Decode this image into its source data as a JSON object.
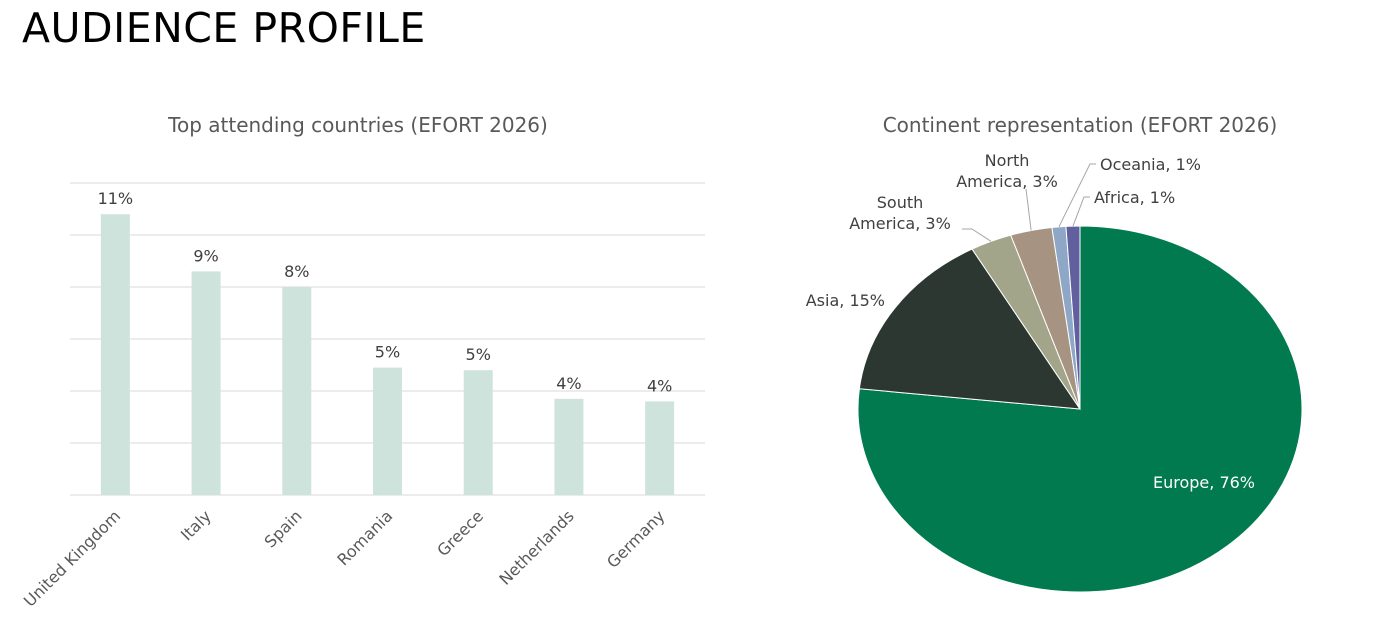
{
  "page": {
    "title": "AUDIENCE PROFILE"
  },
  "colors": {
    "bar": "#cfe3dd",
    "gridline": "#d9d9d9",
    "text": "#404040",
    "pie_label": "#ffffff"
  },
  "chart_data": [
    {
      "type": "bar",
      "title": "Top attending countries (EFORT 2026)",
      "categories": [
        "United Kingdom",
        "Italy",
        "Spain",
        "Romania",
        "Greece",
        "Netherlands",
        "Germany"
      ],
      "values": [
        10.8,
        8.6,
        8.0,
        4.9,
        4.8,
        3.7,
        3.6
      ],
      "data_labels": [
        "11%",
        "9%",
        "8%",
        "5%",
        "5%",
        "4%",
        "4%"
      ],
      "ylim": [
        0,
        12
      ],
      "grid": true,
      "xlabel": "",
      "ylabel": ""
    },
    {
      "type": "pie",
      "title": "Continent representation (EFORT 2026)",
      "slices": [
        {
          "label": "Europe",
          "value": 76,
          "display": "76%",
          "color": "#017a4f"
        },
        {
          "label": "Asia",
          "value": 15,
          "display": "15%",
          "color": "#2d3731"
        },
        {
          "label": "South America",
          "value": 3,
          "display": "3%",
          "color": "#a2a58a"
        },
        {
          "label": "North America",
          "value": 3,
          "display": "3%",
          "color": "#a69382"
        },
        {
          "label": "Oceania",
          "value": 1,
          "display": "1%",
          "color": "#8ea7c6"
        },
        {
          "label": "Africa",
          "value": 1,
          "display": "1%",
          "color": "#625f9f"
        }
      ]
    }
  ]
}
